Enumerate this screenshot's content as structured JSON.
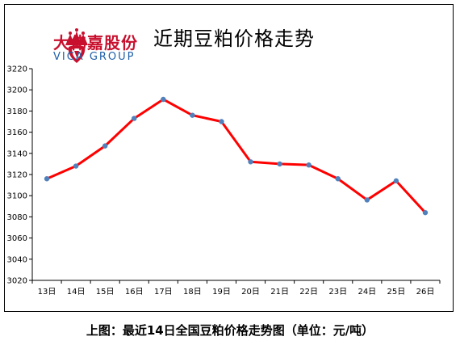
{
  "brand": {
    "name_cn": "大伟嘉股份",
    "name_en": "VICA GROUP",
    "logo_icon": "crown-logo-icon",
    "color_primary": "#c8102e",
    "color_secondary": "#1f5fa8"
  },
  "caption": "上图：最近14日全国豆粕价格走势图（单位：元/吨）",
  "chart_data": {
    "type": "line",
    "title": "近期豆粕价格走势",
    "categories": [
      "13日",
      "14日",
      "15日",
      "16日",
      "17日",
      "18日",
      "19日",
      "20日",
      "21日",
      "22日",
      "23日",
      "24日",
      "25日",
      "26日"
    ],
    "series": [
      {
        "values": [
          3116,
          3128,
          3147,
          3173,
          3191,
          3176,
          3170,
          3132,
          3130,
          3129,
          3116,
          3096,
          3114,
          3084
        ]
      }
    ],
    "ylim": [
      3020,
      3220
    ],
    "yticks": [
      "3020",
      "3040",
      "3060",
      "3080",
      "3100",
      "3120",
      "3140",
      "3160",
      "3180",
      "3200",
      "3220"
    ],
    "grid": false,
    "legend": "none",
    "line_color": "#ff0000",
    "marker_color": "#4f81bd"
  }
}
